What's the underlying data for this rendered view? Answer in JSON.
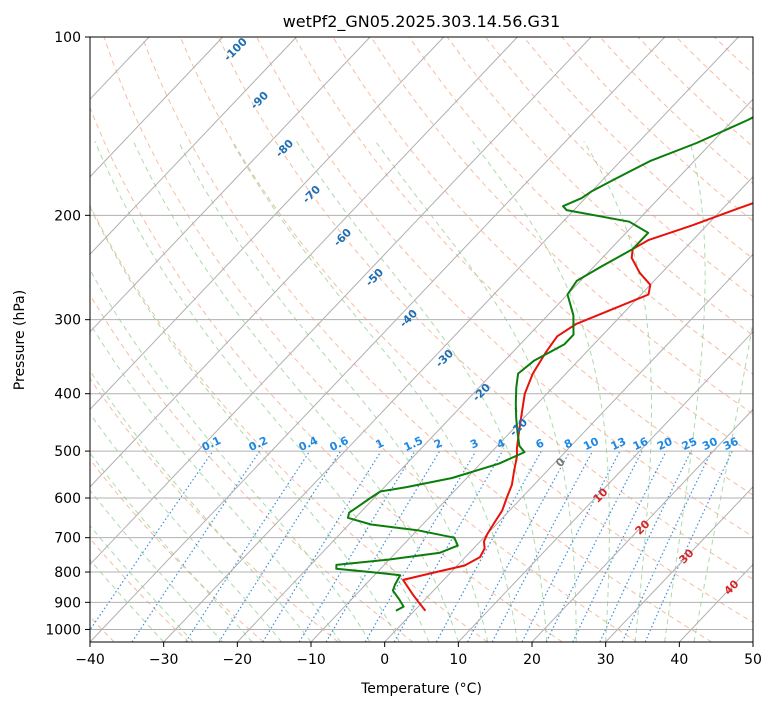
{
  "chart_data": {
    "type": "line",
    "title": "wetPf2_GN05.2025.303.14.56.G31",
    "xlabel": "Temperature (°C)",
    "ylabel": "Pressure (hPa)",
    "xlim": [
      -40,
      50
    ],
    "ylim": [
      1050,
      100
    ],
    "x_ticks": [
      -40,
      -30,
      -20,
      -10,
      0,
      10,
      20,
      30,
      40,
      50
    ],
    "y_ticks": [
      100,
      200,
      300,
      400,
      500,
      600,
      700,
      800,
      900,
      1000
    ],
    "y_scale": "log",
    "skew": "skew-T",
    "grid": true,
    "series": [
      {
        "color": "#e8120c",
        "points": [
          [
            1.5,
            930
          ],
          [
            -0.5,
            900
          ],
          [
            -2.5,
            870
          ],
          [
            -5.5,
            825
          ],
          [
            -2,
            800
          ],
          [
            1,
            780
          ],
          [
            2,
            755
          ],
          [
            1.5,
            730
          ],
          [
            0.5,
            710
          ],
          [
            0,
            690
          ],
          [
            -0.5,
            660
          ],
          [
            -1,
            630
          ],
          [
            -2,
            600
          ],
          [
            -3,
            570
          ],
          [
            -4.5,
            540
          ],
          [
            -6,
            510
          ],
          [
            -7,
            495
          ],
          [
            -8.5,
            470
          ],
          [
            -11,
            430
          ],
          [
            -13,
            400
          ],
          [
            -14.5,
            370
          ],
          [
            -15.5,
            340
          ],
          [
            -16,
            320
          ],
          [
            -15,
            305
          ],
          [
            -12,
            288
          ],
          [
            -9,
            272
          ],
          [
            -10,
            262
          ],
          [
            -13,
            250
          ],
          [
            -16,
            236
          ],
          [
            -17,
            228
          ],
          [
            -16,
            220
          ],
          [
            -12,
            208
          ],
          [
            -8,
            195
          ],
          [
            -2,
            178
          ],
          [
            6,
            160
          ],
          [
            11,
            146
          ],
          [
            15,
            133
          ],
          [
            20,
            118
          ],
          [
            27,
            106
          ],
          [
            32,
            100
          ]
        ]
      },
      {
        "color": "#0a7d0a",
        "points": [
          [
            -2.5,
            930
          ],
          [
            -2,
            915
          ],
          [
            -3.5,
            890
          ],
          [
            -5.5,
            860
          ],
          [
            -6,
            840
          ],
          [
            -6.5,
            810
          ],
          [
            -11,
            800
          ],
          [
            -16,
            790
          ],
          [
            -16.5,
            778
          ],
          [
            -10,
            762
          ],
          [
            -4,
            742
          ],
          [
            -2.5,
            722
          ],
          [
            -4,
            700
          ],
          [
            -10,
            680
          ],
          [
            -17,
            665
          ],
          [
            -21,
            648
          ],
          [
            -21.5,
            635
          ],
          [
            -21,
            618
          ],
          [
            -20.5,
            600
          ],
          [
            -20,
            585
          ],
          [
            -17,
            575
          ],
          [
            -12,
            555
          ],
          [
            -7.5,
            525
          ],
          [
            -5.5,
            502
          ],
          [
            -7,
            490
          ],
          [
            -9,
            465
          ],
          [
            -11,
            440
          ],
          [
            -13,
            415
          ],
          [
            -15,
            390
          ],
          [
            -16.5,
            370
          ],
          [
            -16,
            352
          ],
          [
            -14,
            330
          ],
          [
            -14,
            318
          ],
          [
            -16.5,
            295
          ],
          [
            -20,
            272
          ],
          [
            -20.5,
            258
          ],
          [
            -19,
            244
          ],
          [
            -17,
            228
          ],
          [
            -17,
            214
          ],
          [
            -21,
            205
          ],
          [
            -31,
            196
          ],
          [
            -32,
            193
          ],
          [
            -30.5,
            187
          ],
          [
            -30,
            182
          ],
          [
            -28.5,
            174
          ],
          [
            -26,
            162
          ],
          [
            -22,
            151
          ],
          [
            -18,
            138
          ],
          [
            -15,
            126
          ],
          [
            -13,
            118
          ],
          [
            -11,
            108
          ],
          [
            -10.5,
            100
          ]
        ]
      }
    ],
    "dry_adiabat_labels": [
      "-100",
      "-90",
      "-80",
      "-70",
      "-60",
      "-50",
      "-40",
      "-30",
      "-20",
      "-10"
    ],
    "moist_adiabat_labels": [
      "0",
      "10",
      "20",
      "30",
      "40"
    ],
    "mixing_ratio_labels": [
      "0.1",
      "0.2",
      "0.4",
      "0.6",
      "1",
      "1.5",
      "2",
      "3",
      "4",
      "6",
      "8",
      "10",
      "13",
      "16",
      "20",
      "25",
      "30",
      "36"
    ]
  }
}
